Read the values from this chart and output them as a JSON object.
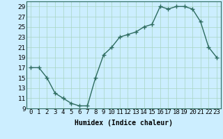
{
  "x": [
    0,
    1,
    2,
    3,
    4,
    5,
    6,
    7,
    8,
    9,
    10,
    11,
    12,
    13,
    14,
    15,
    16,
    17,
    18,
    19,
    20,
    21,
    22,
    23
  ],
  "y": [
    17,
    17,
    15,
    12,
    11,
    10,
    9.5,
    9.5,
    15,
    19.5,
    21,
    23,
    23.5,
    24,
    25,
    25.5,
    29,
    28.5,
    29,
    29,
    28.5,
    26,
    21,
    19
  ],
  "line_color": "#2d6b5e",
  "marker": "+",
  "marker_size": 4,
  "bg_color": "#cceeff",
  "grid_color": "#a8d5c2",
  "xlabel": "Humidex (Indice chaleur)",
  "xlim": [
    -0.5,
    23.5
  ],
  "ylim": [
    9,
    30
  ],
  "yticks": [
    9,
    11,
    13,
    15,
    17,
    19,
    21,
    23,
    25,
    27,
    29
  ],
  "xtick_labels": [
    "0",
    "1",
    "2",
    "3",
    "4",
    "5",
    "6",
    "7",
    "8",
    "9",
    "10",
    "11",
    "12",
    "13",
    "14",
    "15",
    "16",
    "17",
    "18",
    "19",
    "20",
    "21",
    "22",
    "23"
  ],
  "xlabel_fontsize": 7,
  "tick_fontsize": 6.5,
  "line_width": 1.0
}
